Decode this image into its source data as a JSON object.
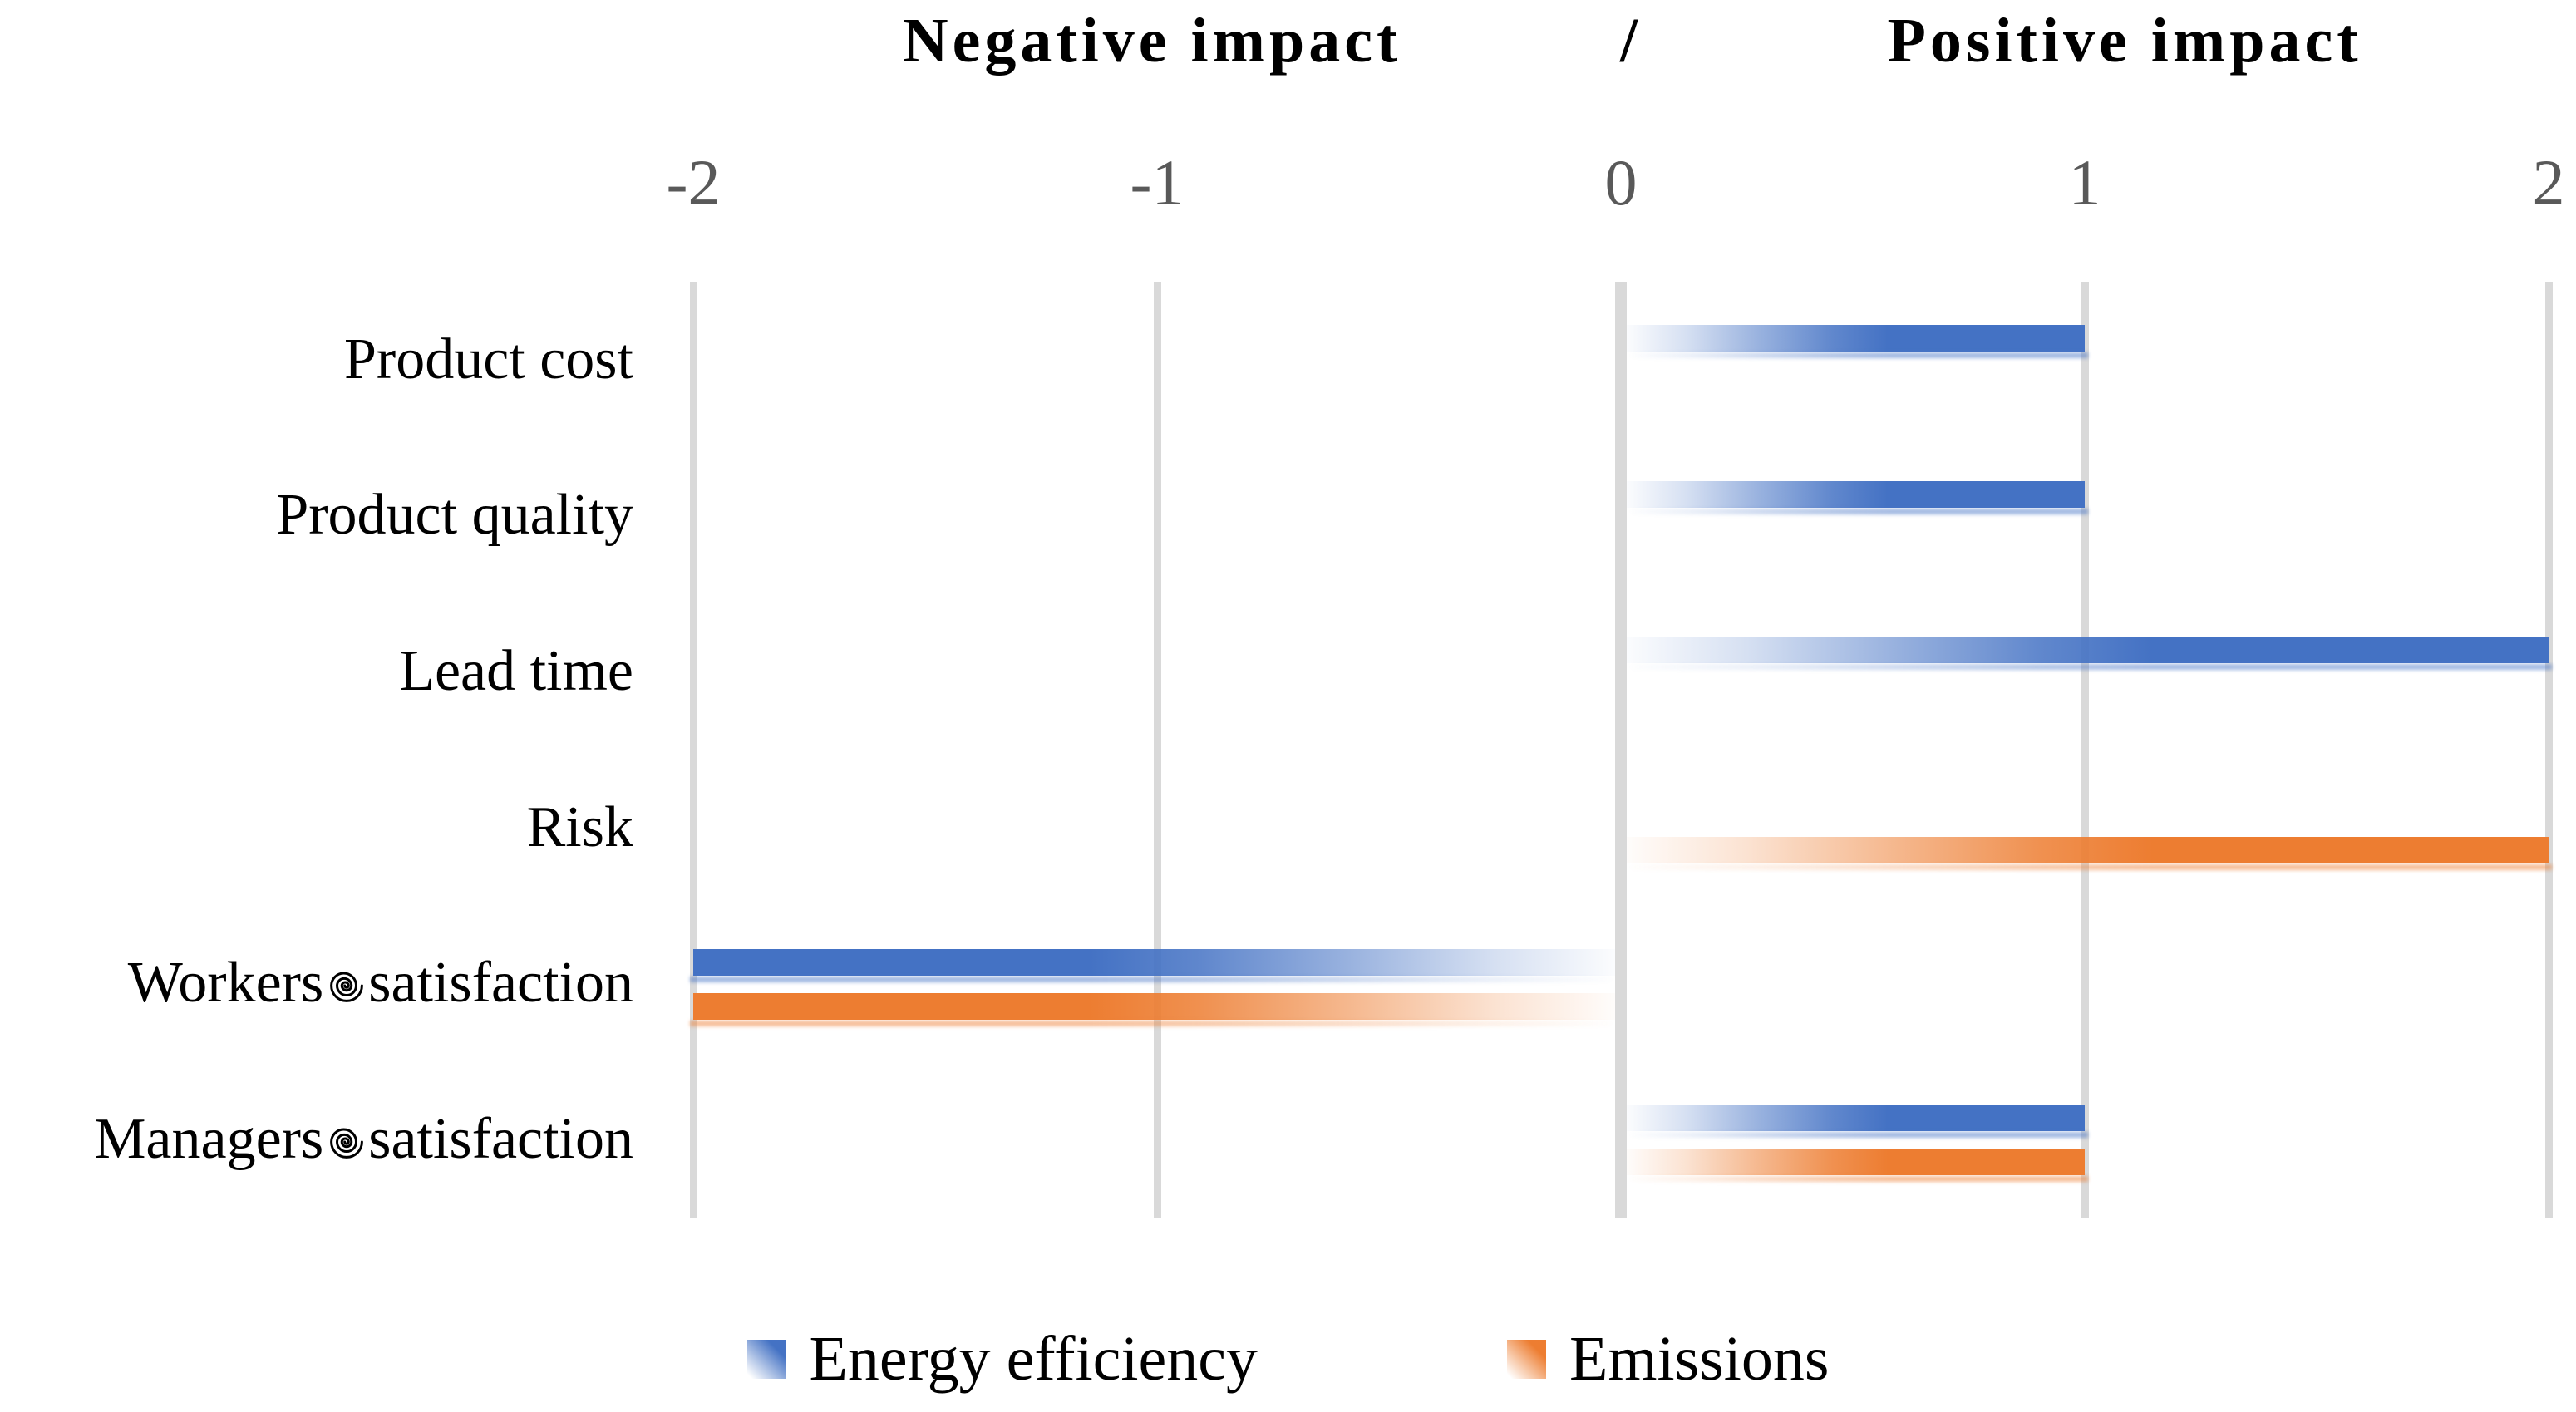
{
  "chart_data": {
    "type": "bar",
    "orientation": "horizontal",
    "title": {
      "negative": "Negative impact",
      "slash": "/",
      "positive": "Positive impact"
    },
    "categories": [
      "Product cost",
      "Product quality",
      "Lead time",
      "Risk",
      "Workers satisfaction",
      "Managers satisfaction"
    ],
    "category_display": [
      {
        "pre": "Product cost",
        "spiral": false,
        "post": ""
      },
      {
        "pre": "Product quality",
        "spiral": false,
        "post": ""
      },
      {
        "pre": "Lead time",
        "spiral": false,
        "post": ""
      },
      {
        "pre": "Risk",
        "spiral": false,
        "post": ""
      },
      {
        "pre": "Workers",
        "spiral": true,
        "post": "satisfaction"
      },
      {
        "pre": "Managers",
        "spiral": true,
        "post": "satisfaction"
      }
    ],
    "series": [
      {
        "name": "Energy efficiency",
        "color": "#4472C4",
        "values": [
          1,
          1,
          2,
          0,
          -2,
          1
        ]
      },
      {
        "name": "Emissions",
        "color": "#ED7D31",
        "values": [
          0,
          0,
          0,
          2,
          -2,
          1
        ]
      }
    ],
    "axis": {
      "min": -2,
      "max": 2,
      "ticks": [
        -2,
        -1,
        0,
        1,
        2
      ],
      "tick_labels": [
        "-2",
        "-1",
        "0",
        "1",
        "2"
      ],
      "gridlines": true,
      "grid_color": "#D9D9D9",
      "tick_color": "#595959"
    },
    "legend": {
      "position": "bottom"
    },
    "xlabel": "",
    "ylabel": ""
  }
}
